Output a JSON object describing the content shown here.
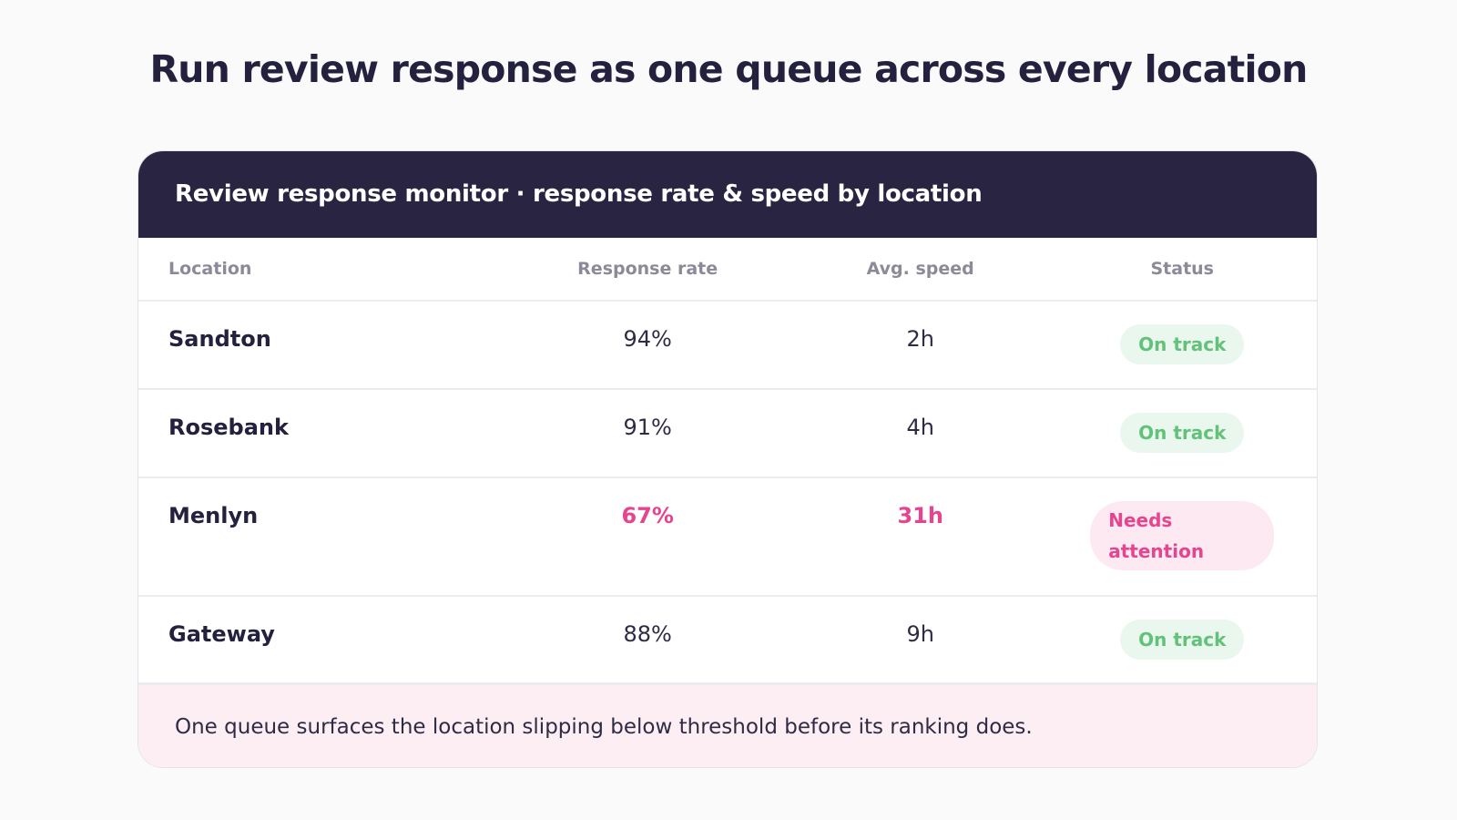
{
  "page": {
    "title": "Run review response as one queue across every location"
  },
  "monitor": {
    "header": "Review response monitor · response rate & speed by location",
    "columns": {
      "location": "Location",
      "response_rate": "Response rate",
      "avg_speed": "Avg. speed",
      "status": "Status"
    },
    "rows": [
      {
        "location": "Sandton",
        "response_rate": "94%",
        "avg_speed": "2h",
        "status": "On track"
      },
      {
        "location": "Rosebank",
        "response_rate": "91%",
        "avg_speed": "4h",
        "status": "On track"
      },
      {
        "location": "Menlyn",
        "response_rate": "67%",
        "avg_speed": "31h",
        "status": "Needs attention"
      },
      {
        "location": "Gateway",
        "response_rate": "88%",
        "avg_speed": "9h",
        "status": "On track"
      }
    ],
    "footer": "One queue surfaces the location slipping below threshold before its ranking does."
  },
  "colors": {
    "header_bg": "#292442",
    "ok_text": "#63c27a",
    "ok_bg": "#eaf7ee",
    "alert_text": "#e6448e",
    "alert_bg": "#fde9f1",
    "footer_bg": "#fdeef3"
  }
}
